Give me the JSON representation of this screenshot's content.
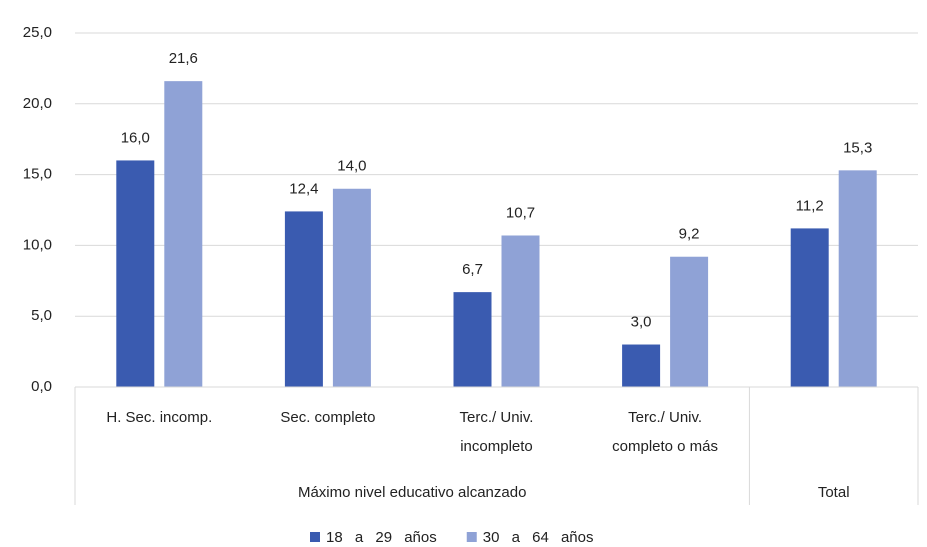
{
  "chart_data": {
    "type": "bar",
    "groups": [
      {
        "label": "Máximo nivel educativo alcanzado",
        "categories": [
          [
            "H. Sec. incomp."
          ],
          [
            "Sec. completo"
          ],
          [
            "Terc./ Univ.",
            "incompleto"
          ],
          [
            "Terc./ Univ.",
            "completo o más"
          ]
        ]
      },
      {
        "label": "Total",
        "categories": [
          null
        ]
      }
    ],
    "series": [
      {
        "name": "18 a 29 años",
        "color": "#3a5bb0",
        "values": [
          16.0,
          12.4,
          6.7,
          3.0,
          11.2
        ],
        "value_labels": [
          "16,0",
          "12,4",
          "6,7",
          "3,0",
          "11,2"
        ]
      },
      {
        "name": "30 a 64 años",
        "color": "#8fa2d6",
        "values": [
          21.6,
          14.0,
          10.7,
          9.2,
          15.3
        ],
        "value_labels": [
          "21,6",
          "14,0",
          "10,7",
          "9,2",
          "15,3"
        ]
      }
    ],
    "ylim": [
      0,
      25
    ],
    "yticks": [
      {
        "value": 0,
        "label": "0,0"
      },
      {
        "value": 5,
        "label": "5,0"
      },
      {
        "value": 10,
        "label": "10,0"
      },
      {
        "value": 15,
        "label": "15,0"
      },
      {
        "value": 20,
        "label": "20,0"
      },
      {
        "value": 25,
        "label": "25,0"
      }
    ],
    "grid": true,
    "legend": "bottom"
  }
}
